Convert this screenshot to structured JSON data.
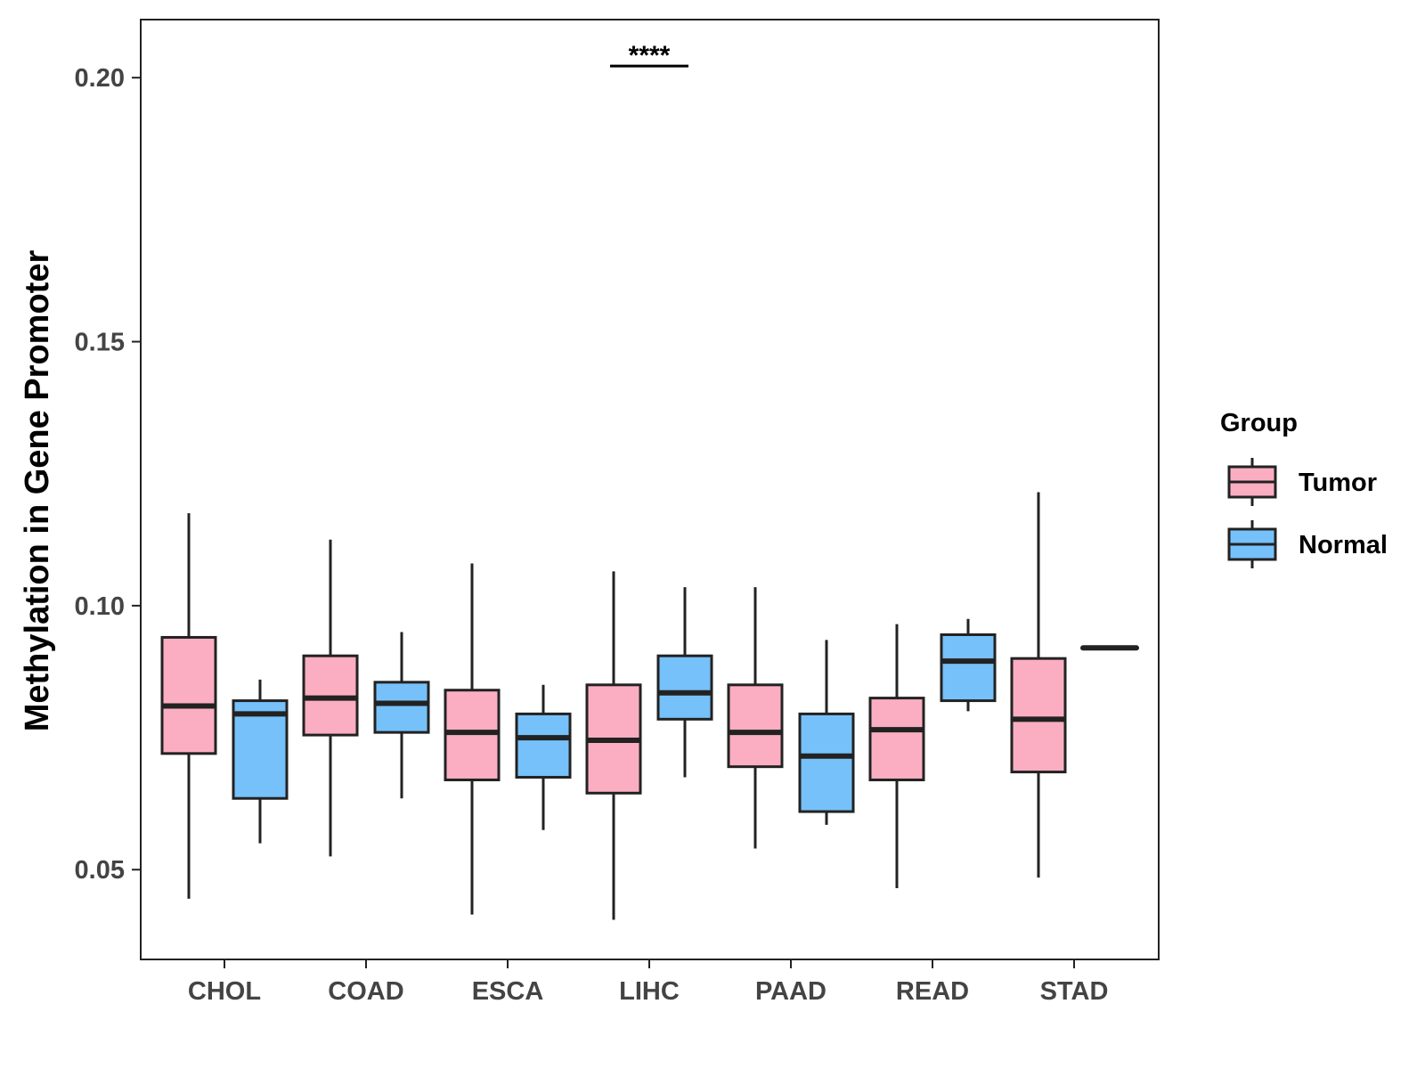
{
  "chart_data": {
    "type": "boxplot",
    "title": "",
    "xlabel": "",
    "ylabel": "Methylation in Gene Promoter",
    "ylim": [
      0.033,
      0.211
    ],
    "yticks": [
      0.05,
      0.1,
      0.15,
      0.2
    ],
    "ytick_labels": [
      "0.05",
      "0.10",
      "0.15",
      "0.20"
    ],
    "categories": [
      "CHOL",
      "COAD",
      "ESCA",
      "LIHC",
      "PAAD",
      "READ",
      "STAD"
    ],
    "legend": {
      "title": "Group",
      "position": "right",
      "entries": [
        {
          "name": "Tumor",
          "color": "#FBAEC2"
        },
        {
          "name": "Normal",
          "color": "#76C1FA"
        }
      ]
    },
    "series": [
      {
        "name": "Tumor",
        "color": "#FBAEC2",
        "boxes": [
          {
            "category": "CHOL",
            "min": 0.0445,
            "q1": 0.072,
            "median": 0.081,
            "q3": 0.094,
            "max": 0.1175
          },
          {
            "category": "COAD",
            "min": 0.0525,
            "q1": 0.0755,
            "median": 0.0825,
            "q3": 0.0905,
            "max": 0.1125
          },
          {
            "category": "ESCA",
            "min": 0.0415,
            "q1": 0.067,
            "median": 0.076,
            "q3": 0.084,
            "max": 0.108
          },
          {
            "category": "LIHC",
            "min": 0.0405,
            "q1": 0.0645,
            "median": 0.0745,
            "q3": 0.085,
            "max": 0.1065
          },
          {
            "category": "PAAD",
            "min": 0.054,
            "q1": 0.0695,
            "median": 0.076,
            "q3": 0.085,
            "max": 0.1035
          },
          {
            "category": "READ",
            "min": 0.0465,
            "q1": 0.067,
            "median": 0.0765,
            "q3": 0.0825,
            "max": 0.0965
          },
          {
            "category": "STAD",
            "min": 0.0485,
            "q1": 0.0685,
            "median": 0.0785,
            "q3": 0.09,
            "max": 0.1215
          }
        ]
      },
      {
        "name": "Normal",
        "color": "#76C1FA",
        "boxes": [
          {
            "category": "CHOL",
            "min": 0.055,
            "q1": 0.0635,
            "median": 0.0795,
            "q3": 0.082,
            "max": 0.086
          },
          {
            "category": "COAD",
            "min": 0.0635,
            "q1": 0.076,
            "median": 0.0815,
            "q3": 0.0855,
            "max": 0.095
          },
          {
            "category": "ESCA",
            "min": 0.0575,
            "q1": 0.0675,
            "median": 0.075,
            "q3": 0.0795,
            "max": 0.085
          },
          {
            "category": "LIHC",
            "min": 0.0675,
            "q1": 0.0785,
            "median": 0.0835,
            "q3": 0.0905,
            "max": 0.1035
          },
          {
            "category": "PAAD",
            "min": 0.0585,
            "q1": 0.061,
            "median": 0.0715,
            "q3": 0.0795,
            "max": 0.0935
          },
          {
            "category": "READ",
            "min": 0.08,
            "q1": 0.082,
            "median": 0.0895,
            "q3": 0.0945,
            "max": 0.0975
          },
          {
            "category": "STAD",
            "min": 0.092,
            "q1": 0.092,
            "median": 0.092,
            "q3": 0.092,
            "max": 0.092
          }
        ]
      }
    ],
    "annotations": [
      {
        "category": "LIHC",
        "text": "****",
        "y": 0.2022
      }
    ]
  }
}
